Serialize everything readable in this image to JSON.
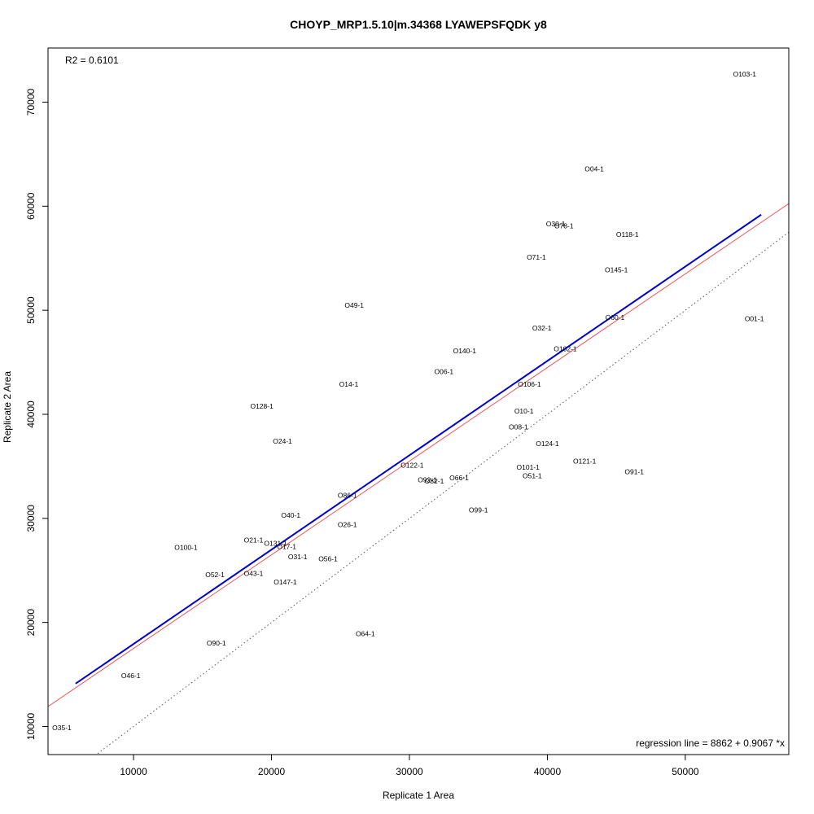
{
  "chart_data": {
    "type": "scatter",
    "title": "CHOYP_MRP1.5.10|m.34368 LYAWEPSFQDK y8",
    "xlabel": "Replicate 1 Area",
    "ylabel": "Replicate 2 Area",
    "r2_label": "R2 = 0.6101",
    "regression_label": "regression line = 8862 + 0.9067 *x",
    "xlim": [
      3800,
      57500
    ],
    "ylim": [
      7300,
      75200
    ],
    "xticks": [
      10000,
      20000,
      30000,
      40000,
      50000
    ],
    "yticks": [
      10000,
      20000,
      30000,
      40000,
      50000,
      60000,
      70000
    ],
    "grid": false,
    "lines": [
      {
        "name": "regression",
        "color": "#0000cc",
        "style": "solid",
        "x_range": [
          5800,
          55500
        ],
        "intercept": 8862,
        "slope": 0.9067
      },
      {
        "name": "fit",
        "color": "#ee5555",
        "style": "solid",
        "intercept": 8500,
        "slope": 0.9
      },
      {
        "name": "identity",
        "color": "#555555",
        "style": "dotted",
        "intercept": 0,
        "slope": 1
      }
    ],
    "points": [
      {
        "label": "O103-1",
        "x": 54300,
        "y": 72700
      },
      {
        "label": "O04-1",
        "x": 43400,
        "y": 63600
      },
      {
        "label": "O30-1",
        "x": 40600,
        "y": 58300
      },
      {
        "label": "O78-1",
        "x": 41200,
        "y": 58100
      },
      {
        "label": "O118-1",
        "x": 45800,
        "y": 57300
      },
      {
        "label": "O71-1",
        "x": 39200,
        "y": 55100
      },
      {
        "label": "O145-1",
        "x": 45000,
        "y": 53900
      },
      {
        "label": "O49-1",
        "x": 26000,
        "y": 50500
      },
      {
        "label": "O01-1",
        "x": 55000,
        "y": 49200
      },
      {
        "label": "O60-1",
        "x": 44900,
        "y": 49300
      },
      {
        "label": "O32-1",
        "x": 39600,
        "y": 48300
      },
      {
        "label": "O102-1",
        "x": 41300,
        "y": 46300
      },
      {
        "label": "O140-1",
        "x": 34000,
        "y": 46100
      },
      {
        "label": "O06-1",
        "x": 32500,
        "y": 44100
      },
      {
        "label": "O14-1",
        "x": 25600,
        "y": 42900
      },
      {
        "label": "O106-1",
        "x": 38700,
        "y": 42900
      },
      {
        "label": "O128-1",
        "x": 19300,
        "y": 40800
      },
      {
        "label": "O10-1",
        "x": 38300,
        "y": 40300
      },
      {
        "label": "O08-1",
        "x": 37900,
        "y": 38800
      },
      {
        "label": "O24-1",
        "x": 20800,
        "y": 37400
      },
      {
        "label": "O124-1",
        "x": 40000,
        "y": 37200
      },
      {
        "label": "O121-1",
        "x": 42700,
        "y": 35500
      },
      {
        "label": "O122-1",
        "x": 30200,
        "y": 35100
      },
      {
        "label": "O101-1",
        "x": 38600,
        "y": 34900
      },
      {
        "label": "O91-1",
        "x": 46300,
        "y": 34500
      },
      {
        "label": "O51-1",
        "x": 38900,
        "y": 34100
      },
      {
        "label": "O66-1",
        "x": 33600,
        "y": 33900
      },
      {
        "label": "O92-1",
        "x": 31300,
        "y": 33700
      },
      {
        "label": "O82-1",
        "x": 31800,
        "y": 33600
      },
      {
        "label": "O86-1",
        "x": 25500,
        "y": 32200
      },
      {
        "label": "O99-1",
        "x": 35000,
        "y": 30800
      },
      {
        "label": "O40-1",
        "x": 21400,
        "y": 30300
      },
      {
        "label": "O26-1",
        "x": 25500,
        "y": 29400
      },
      {
        "label": "O21-1",
        "x": 18700,
        "y": 27900
      },
      {
        "label": "O131-1",
        "x": 20300,
        "y": 27600
      },
      {
        "label": "O100-1",
        "x": 13800,
        "y": 27200
      },
      {
        "label": "O17-1",
        "x": 21100,
        "y": 27300
      },
      {
        "label": "O31-1",
        "x": 21900,
        "y": 26300
      },
      {
        "label": "O56-1",
        "x": 24100,
        "y": 26100
      },
      {
        "label": "O52-1",
        "x": 15900,
        "y": 24600
      },
      {
        "label": "O43-1",
        "x": 18700,
        "y": 24700
      },
      {
        "label": "O147-1",
        "x": 21000,
        "y": 23900
      },
      {
        "label": "O64-1",
        "x": 26800,
        "y": 18900
      },
      {
        "label": "O90-1",
        "x": 16000,
        "y": 18000
      },
      {
        "label": "O46-1",
        "x": 9800,
        "y": 14900
      },
      {
        "label": "O35-1",
        "x": 4800,
        "y": 9900
      }
    ]
  }
}
